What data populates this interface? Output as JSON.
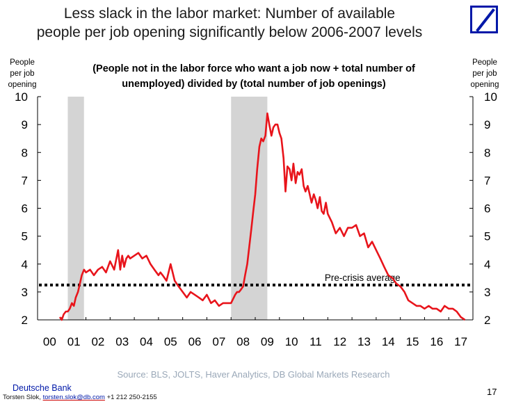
{
  "header": {
    "title_line1": "Less slack in the labor market: Number of available",
    "title_line2": "people per job opening significantly below 2006-2007 levels",
    "logo_icon": "deutsche-bank-logo-icon",
    "logo_color": "#0018a8"
  },
  "footer": {
    "source": "Source: BLS, JOLTS, Haver Analytics, DB Global Markets Research",
    "brand": "Deutsche Bank",
    "author": "Torsten Slok,",
    "email": "torsten.slok@db.com",
    "phone": "+1 212 250-2155",
    "page_number": "17"
  },
  "chart_data": {
    "type": "line",
    "subtitle_line1": "(People not in the labor force who want a job now + total number of",
    "subtitle_line2": "unemployed) divided by (total number of job openings)",
    "ylabel_left": [
      "People",
      "per job",
      "opening"
    ],
    "ylabel_right": [
      "People",
      "per job",
      "opening"
    ],
    "ylim": [
      2,
      10
    ],
    "yticks": [
      2,
      3,
      4,
      5,
      6,
      7,
      8,
      9,
      10
    ],
    "ytick_labels": [
      "2",
      "3",
      "4",
      "5",
      "6",
      "7",
      "8",
      "9",
      "10"
    ],
    "xlim": [
      2000,
      2018
    ],
    "xtick_labels": [
      "00",
      "01",
      "02",
      "03",
      "04",
      "05",
      "06",
      "07",
      "08",
      "09",
      "10",
      "11",
      "12",
      "13",
      "14",
      "15",
      "16",
      "17"
    ],
    "grid": false,
    "line_color": "#e8141b",
    "shading_color": "#d4d4d4",
    "recessions": [
      [
        2001.25,
        2001.92
      ],
      [
        2008.0,
        2009.5
      ]
    ],
    "reference_line": {
      "label": "Pre-crisis average",
      "y": 3.25,
      "style": "dotted"
    },
    "series": [
      {
        "x": [
          2000.92,
          2001.0,
          2001.08,
          2001.17,
          2001.25,
          2001.33,
          2001.42,
          2001.5,
          2001.58,
          2001.67,
          2001.75,
          2001.83,
          2001.92,
          2002.0,
          2002.17,
          2002.33,
          2002.5,
          2002.67,
          2002.83,
          2003.0,
          2003.17,
          2003.33,
          2003.42,
          2003.5,
          2003.58,
          2003.67,
          2003.75,
          2003.83,
          2004.0,
          2004.17,
          2004.33,
          2004.5,
          2004.67,
          2004.83,
          2005.0,
          2005.08,
          2005.17,
          2005.33,
          2005.5,
          2005.67,
          2005.83,
          2006.0,
          2006.17,
          2006.33,
          2006.5,
          2006.67,
          2006.83,
          2007.0,
          2007.17,
          2007.33,
          2007.5,
          2007.67,
          2007.83,
          2008.0,
          2008.17,
          2008.25,
          2008.33,
          2008.42,
          2008.5,
          2008.58,
          2008.67,
          2008.75,
          2008.83,
          2008.92,
          2009.0,
          2009.08,
          2009.17,
          2009.25,
          2009.33,
          2009.42,
          2009.5,
          2009.58,
          2009.67,
          2009.75,
          2009.83,
          2009.92,
          2010.0,
          2010.08,
          2010.17,
          2010.25,
          2010.33,
          2010.42,
          2010.5,
          2010.58,
          2010.67,
          2010.75,
          2010.83,
          2010.92,
          2011.0,
          2011.08,
          2011.17,
          2011.25,
          2011.33,
          2011.42,
          2011.5,
          2011.58,
          2011.67,
          2011.75,
          2011.83,
          2011.92,
          2012.0,
          2012.17,
          2012.33,
          2012.5,
          2012.67,
          2012.83,
          2013.0,
          2013.17,
          2013.33,
          2013.5,
          2013.67,
          2013.83,
          2014.0,
          2014.17,
          2014.33,
          2014.5,
          2014.67,
          2014.83,
          2015.0,
          2015.17,
          2015.33,
          2015.5,
          2015.67,
          2015.83,
          2016.0,
          2016.17,
          2016.33,
          2016.5,
          2016.67,
          2016.83,
          2017.0,
          2017.17,
          2017.33,
          2017.5,
          2017.67
        ],
        "y": [
          2.1,
          2.0,
          2.2,
          2.3,
          2.3,
          2.4,
          2.6,
          2.5,
          2.8,
          3.0,
          3.3,
          3.6,
          3.8,
          3.7,
          3.8,
          3.6,
          3.8,
          3.9,
          3.7,
          4.1,
          3.8,
          4.5,
          3.8,
          4.3,
          3.9,
          4.2,
          4.3,
          4.2,
          4.3,
          4.4,
          4.2,
          4.3,
          4.0,
          3.8,
          3.6,
          3.7,
          3.6,
          3.4,
          4.0,
          3.4,
          3.2,
          3.0,
          2.8,
          3.0,
          2.9,
          2.8,
          2.7,
          2.9,
          2.6,
          2.7,
          2.5,
          2.6,
          2.6,
          2.6,
          2.9,
          3.0,
          3.0,
          3.1,
          3.2,
          3.6,
          4.0,
          4.6,
          5.2,
          5.9,
          6.5,
          7.4,
          8.2,
          8.5,
          8.4,
          8.6,
          9.4,
          9.0,
          8.6,
          8.9,
          9.0,
          9.0,
          8.7,
          8.5,
          7.8,
          6.6,
          7.5,
          7.4,
          7.0,
          7.6,
          6.9,
          7.3,
          7.2,
          7.4,
          6.8,
          6.6,
          6.8,
          6.5,
          6.2,
          6.5,
          6.3,
          6.0,
          6.4,
          5.9,
          5.8,
          6.2,
          5.8,
          5.5,
          5.1,
          5.3,
          5.0,
          5.3,
          5.3,
          5.4,
          5.0,
          5.1,
          4.6,
          4.8,
          4.5,
          4.2,
          3.9,
          3.6,
          3.5,
          3.3,
          3.2,
          3.0,
          2.7,
          2.6,
          2.5,
          2.5,
          2.4,
          2.5,
          2.4,
          2.4,
          2.3,
          2.5,
          2.4,
          2.4,
          2.3,
          2.1,
          2.0
        ]
      }
    ]
  }
}
